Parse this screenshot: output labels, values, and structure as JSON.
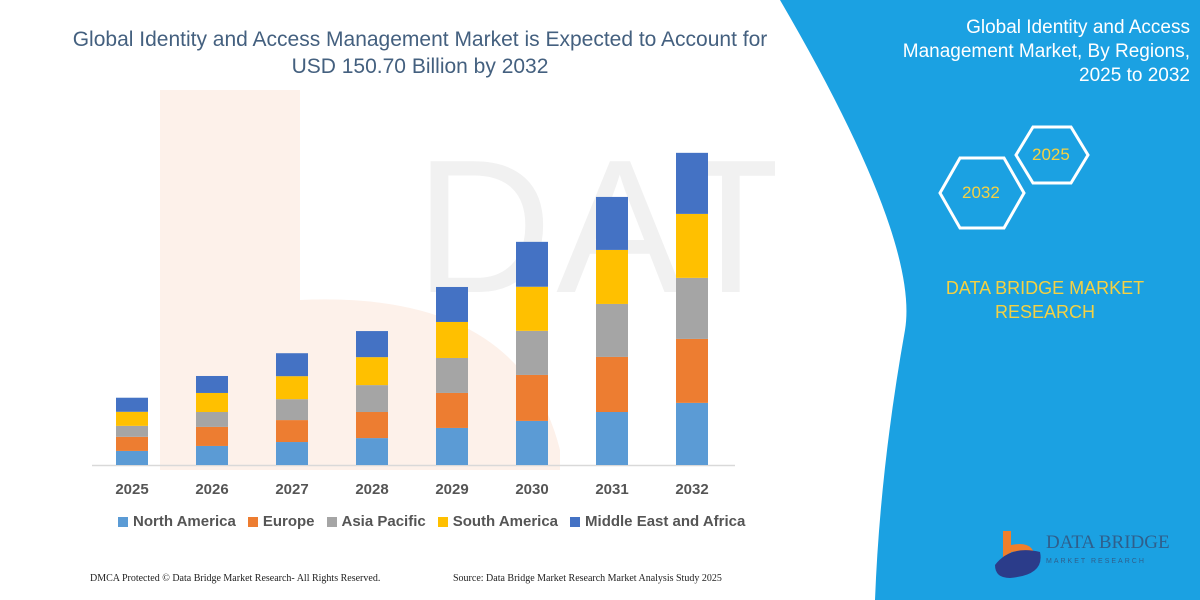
{
  "title": "Global Identity and Access Management Market is Expected to Account for USD 150.70 Billion by 2032",
  "right_panel": {
    "title": "Global Identity and Access Management Market, By Regions, 2025 to 2032",
    "hex_labels": [
      "2025",
      "2032"
    ],
    "brand": "DATA BRIDGE MARKET RESEARCH",
    "logo_text": "DATA BRIDGE",
    "logo_sub": "MARKET RESEARCH",
    "color": "#1ba1e2"
  },
  "footer": {
    "left": "DMCA Protected © Data Bridge Market Research- All Rights Reserved.",
    "right": "Source: Data Bridge Market Research Market Analysis Study 2025"
  },
  "watermark": "DATA BRIDGE",
  "chart_data": {
    "type": "bar",
    "stacked": true,
    "title": "Global Identity and Access Management Market is Expected to Account for USD 150.70 Billion by 2032",
    "xlabel": "",
    "ylabel": "",
    "ylim": [
      0,
      157
    ],
    "grid": false,
    "legend_position": "bottom",
    "categories": [
      "2025",
      "2026",
      "2027",
      "2028",
      "2029",
      "2030",
      "2031",
      "2032"
    ],
    "series": [
      {
        "name": "North America",
        "color": "#5b9bd5",
        "values": [
          6.8,
          9.2,
          11.1,
          13.0,
          17.9,
          21.3,
          25.6,
          30.0
        ]
      },
      {
        "name": "Europe",
        "color": "#ed7d31",
        "values": [
          6.8,
          9.2,
          10.6,
          12.6,
          16.9,
          22.2,
          26.6,
          30.9
        ]
      },
      {
        "name": "Asia Pacific",
        "color": "#a5a5a5",
        "values": [
          5.3,
          7.2,
          10.1,
          13.0,
          16.9,
          21.3,
          25.6,
          29.5
        ]
      },
      {
        "name": "South America",
        "color": "#ffc000",
        "values": [
          6.8,
          9.2,
          11.1,
          13.5,
          17.4,
          21.3,
          26.1,
          30.9
        ]
      },
      {
        "name": "Middle East and Africa",
        "color": "#4472c4",
        "values": [
          6.8,
          8.2,
          11.1,
          12.6,
          16.9,
          21.7,
          25.6,
          29.5
        ]
      }
    ]
  }
}
